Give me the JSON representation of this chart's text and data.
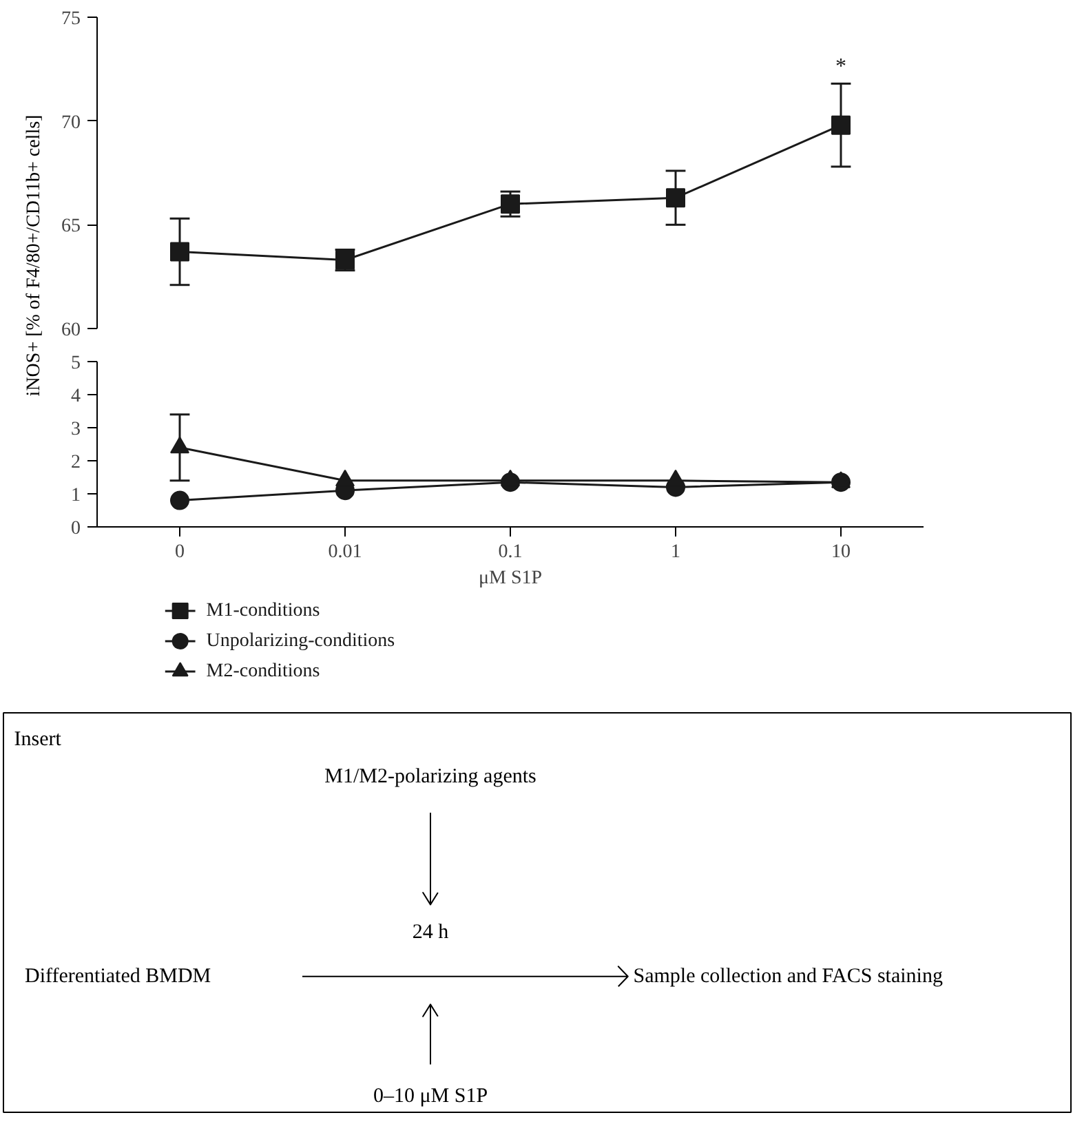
{
  "chart_data": [
    {
      "type": "line",
      "categories": [
        "0",
        "0.01",
        "0.1",
        "1",
        "10"
      ],
      "ylim": [
        60,
        75
      ],
      "yticks": [
        60,
        65,
        70,
        75
      ],
      "tick_labels": "y",
      "legend": "bottom",
      "ylabel": "iNOS+ [% of F4/80+/CD11b+ cells]",
      "annotations": [
        "*"
      ],
      "series": [
        {
          "name": "M1-conditions",
          "color": "#1a1a1a",
          "marker": "square",
          "values": [
            63.7,
            63.3,
            66.0,
            66.3,
            69.8
          ],
          "errors": [
            1.6,
            0.5,
            0.6,
            1.3,
            2.0
          ]
        }
      ]
    },
    {
      "type": "line",
      "categories": [
        "0",
        "0.01",
        "0.1",
        "1",
        "10"
      ],
      "ylim": [
        0,
        5
      ],
      "yticks": [
        0,
        1,
        2,
        3,
        4,
        5
      ],
      "xlabel": "μM S1P",
      "legend": "bottom",
      "series": [
        {
          "name": "Unpolarizing-conditions",
          "color": "#1a1a1a",
          "marker": "circle",
          "values": [
            0.8,
            1.1,
            1.35,
            1.2,
            1.35
          ]
        },
        {
          "name": "M2-conditions",
          "color": "#1a1a1a",
          "marker": "triangle",
          "values": [
            2.4,
            1.4,
            1.4,
            1.4,
            1.35
          ],
          "errors": [
            1.0,
            null,
            null,
            null,
            null
          ]
        }
      ]
    },
    {
      "type": "other",
      "title": "Insert",
      "annotations": [
        "M1/M2-polarizing agents",
        "24 h",
        "Differentiated BMDM",
        "Sample collection and FACS staining",
        "0–10 μM S1P"
      ]
    }
  ]
}
